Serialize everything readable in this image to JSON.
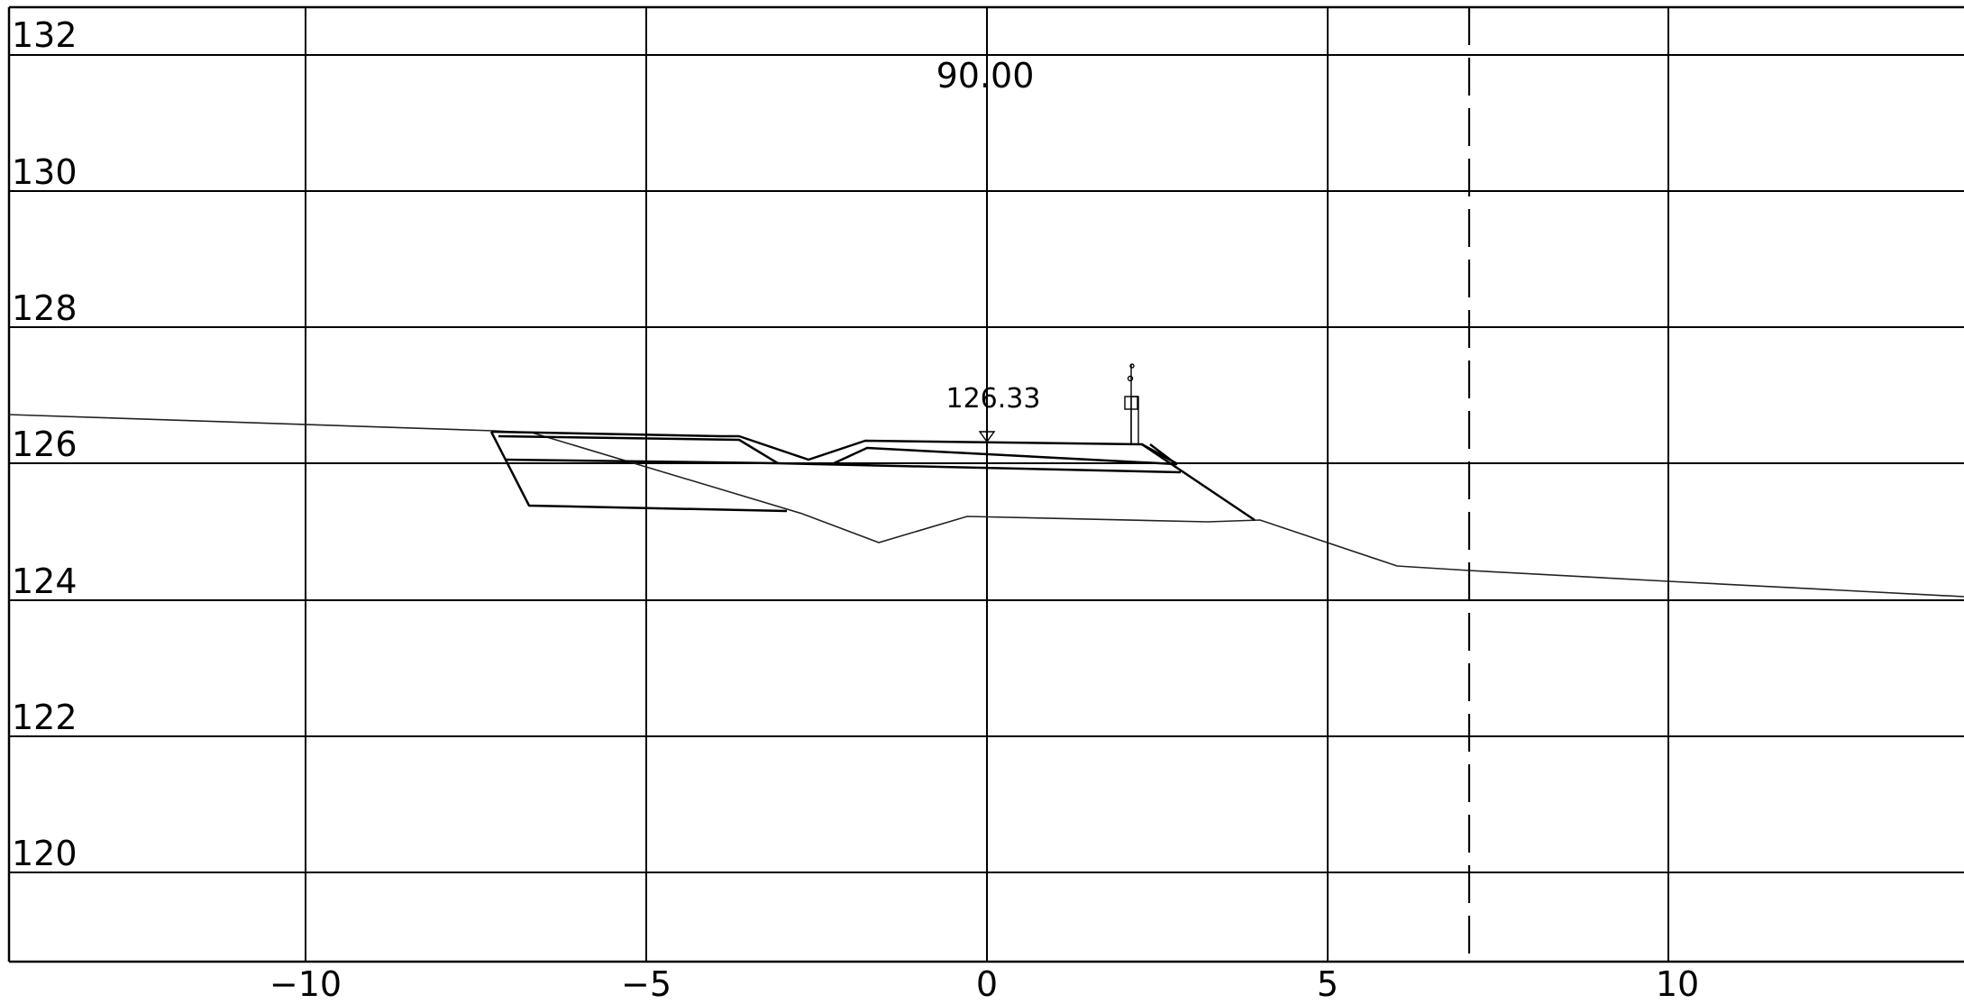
{
  "section": {
    "station_label": "90.00",
    "design_elevation_label": "126.33"
  },
  "axes": {
    "y_ticks": [
      "132",
      "130",
      "128",
      "126",
      "124",
      "122",
      "120"
    ],
    "x_ticks": [
      "−10",
      "−5",
      "0",
      "5",
      "10"
    ],
    "x_range": [
      -14.5,
      14.3
    ],
    "y_range": [
      118.7,
      132.7
    ]
  },
  "chart_data": {
    "type": "line",
    "series": [
      {
        "x": [
          -14.5,
          -7.2,
          -6.8,
          -2.6,
          -1.6,
          -0.3,
          3.2,
          4.0,
          6.0,
          14.3
        ],
        "y": [
          126.7,
          126.45,
          126.4,
          125.1,
          124.85,
          125.25,
          125.2,
          125.2,
          124.5,
          124.05
        ]
      },
      {
        "x": [
          -7.3,
          -2.6,
          -3.6,
          -2.6,
          -1.8,
          2.3,
          3.9,
          2.8,
          -6.8,
          -7.3
        ],
        "y": [
          126.45,
          125.3,
          126.4,
          126.05,
          126.35,
          126.3,
          125.25,
          125.9,
          126.1,
          126.45
        ]
      }
    ],
    "annotations": [
      {
        "x": 0,
        "y": 126.33,
        "text": "126.33"
      },
      {
        "x": 0,
        "y": 131.7,
        "text": "90.00"
      }
    ],
    "vertical_dashed_line_x": 7.1,
    "grid": true
  }
}
